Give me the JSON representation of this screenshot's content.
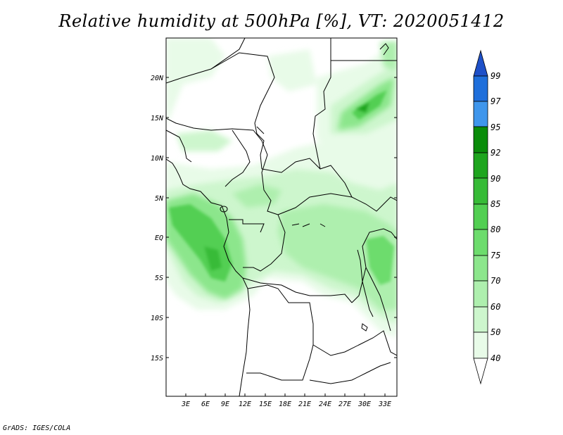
{
  "title": "Relative humidity at 500hPa [%], VT: 2020051412",
  "credit": "GrADS: IGES/COLA",
  "map": {
    "lat_labels": [
      "20N",
      "15N",
      "10N",
      "5N",
      "EQ",
      "5S",
      "10S",
      "15S"
    ],
    "lon_labels": [
      "3E",
      "6E",
      "9E",
      "12E",
      "15E",
      "18E",
      "21E",
      "24E",
      "27E",
      "30E",
      "33E"
    ]
  },
  "colorbar": {
    "levels": [
      "99",
      "97",
      "95",
      "92",
      "90",
      "85",
      "80",
      "75",
      "70",
      "60",
      "50",
      "40"
    ],
    "colors": {
      "top_arrow": "#1e50c8",
      "97_99": "#1f6fdb",
      "95_97": "#3f96ec",
      "92_95": "#0a8c0a",
      "90_92": "#1ea51e",
      "85_90": "#37bb37",
      "80_85": "#52cf52",
      "75_80": "#6ddc6d",
      "70_75": "#8ce68c",
      "60_70": "#aeefae",
      "50_60": "#cdf6cd",
      "40_50": "#e8fbe8",
      "bottom_arrow": "#ffffff"
    }
  }
}
